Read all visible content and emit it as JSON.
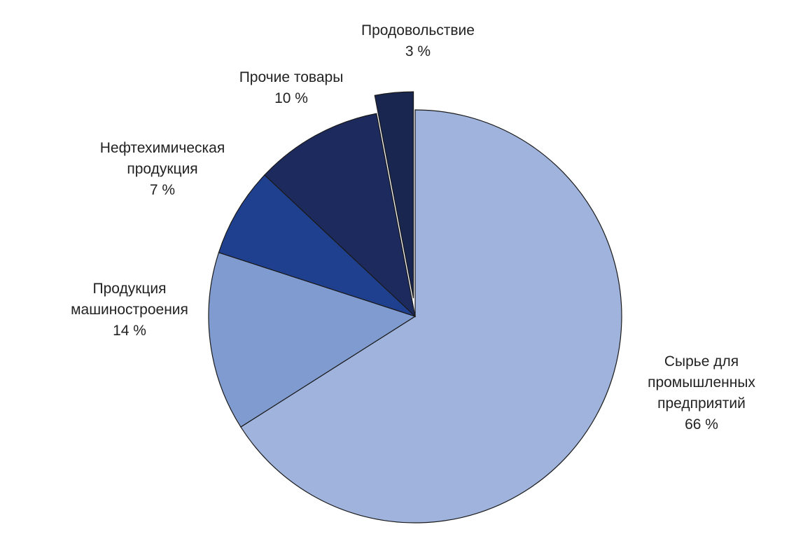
{
  "chart_data": {
    "type": "pie",
    "categories": [
      "Сырье для промышленных предприятий",
      "Продукция машиностроения",
      "Нефтехимическая продукция",
      "Прочие товары",
      "Продовольствие"
    ],
    "values": [
      66,
      14,
      7,
      10,
      3
    ],
    "value_labels": [
      "66 %",
      "14 %",
      "7 %",
      "10 %",
      "3 %"
    ],
    "colors": [
      "#9fb3dc",
      "#7f9bd0",
      "#1f3f8f",
      "#1c2a5e",
      "#182650"
    ],
    "explode": [
      false,
      false,
      false,
      false,
      true
    ]
  }
}
